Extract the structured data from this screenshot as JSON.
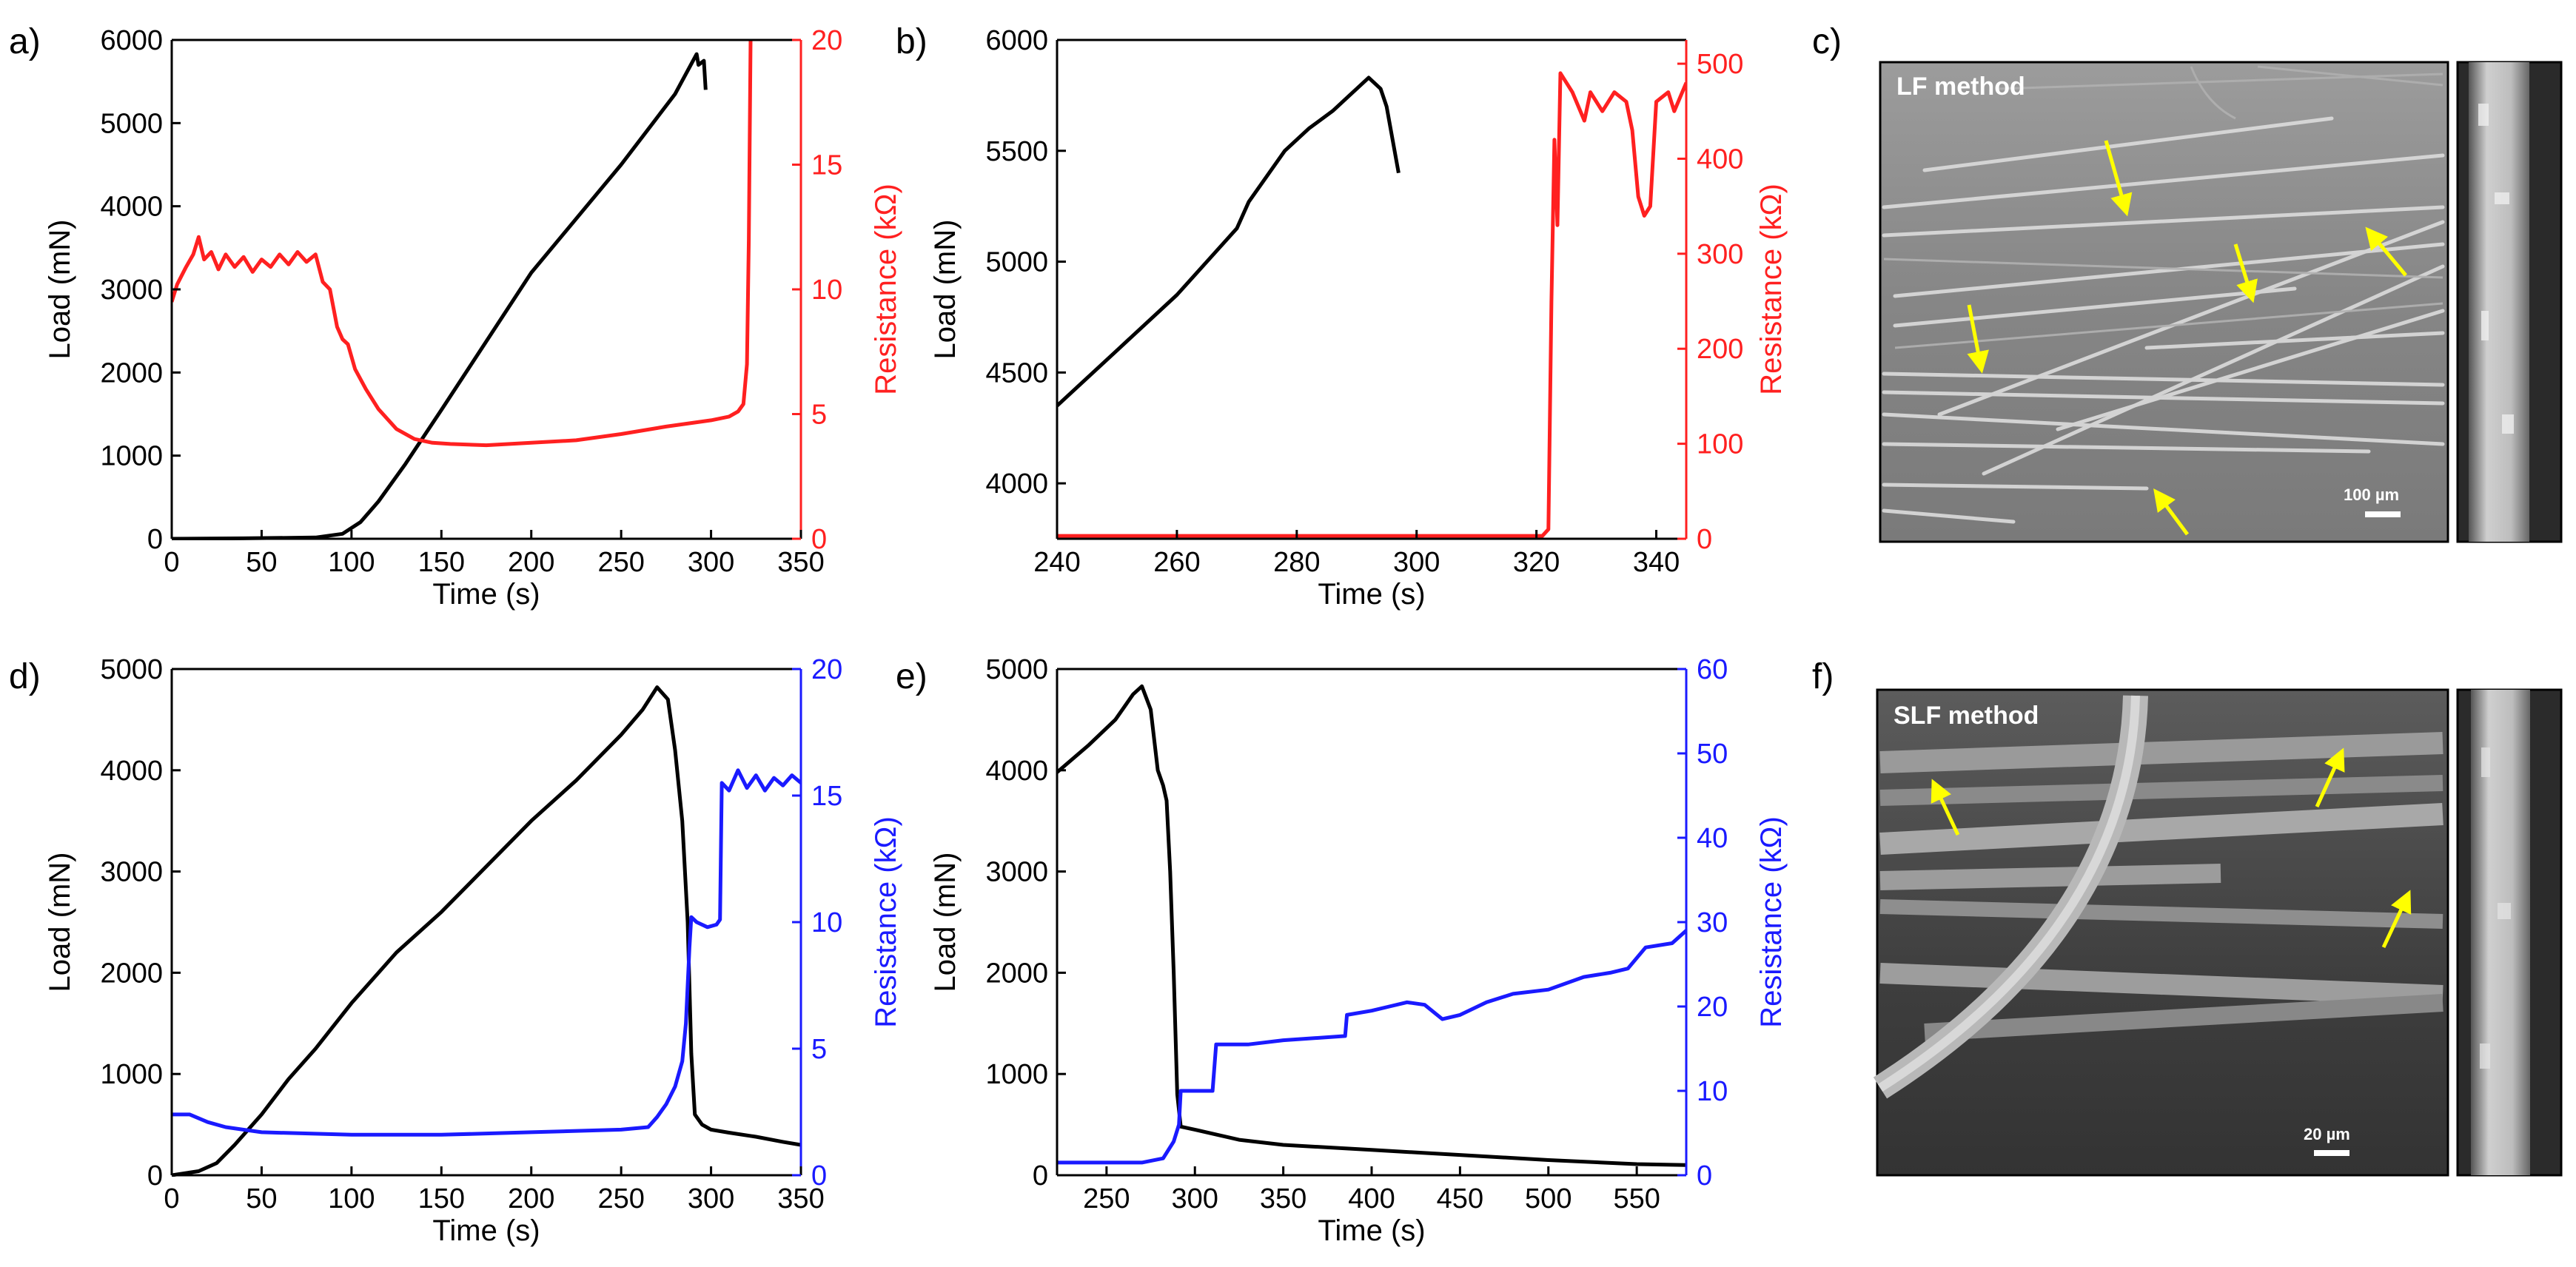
{
  "chart_data": [
    {
      "id": "a",
      "panel_label": "a)",
      "type": "line",
      "xlabel": "Time (s)",
      "ylabel_left": "Load (mN)",
      "ylabel_right": "Resistance (kΩ)",
      "xlim": [
        0,
        350
      ],
      "ylim_left": [
        0,
        6000
      ],
      "ylim_right": [
        0,
        20
      ],
      "xticks": [
        0,
        50,
        100,
        150,
        200,
        250,
        300,
        350
      ],
      "yticks_left": [
        0,
        1000,
        2000,
        3000,
        4000,
        5000,
        6000
      ],
      "yticks_right": [
        0,
        5,
        10,
        15,
        20
      ],
      "right_color": "#ff2020",
      "series": [
        {
          "name": "Load",
          "axis": "left",
          "color": "#000000",
          "points": [
            [
              0,
              0
            ],
            [
              40,
              5
            ],
            [
              80,
              15
            ],
            [
              95,
              60
            ],
            [
              105,
              200
            ],
            [
              115,
              450
            ],
            [
              130,
              900
            ],
            [
              150,
              1550
            ],
            [
              200,
              3200
            ],
            [
              250,
              4500
            ],
            [
              280,
              5350
            ],
            [
              292,
              5830
            ],
            [
              293,
              5700
            ],
            [
              296,
              5750
            ],
            [
              297,
              5400
            ]
          ]
        },
        {
          "name": "Resistance",
          "axis": "right",
          "color": "#ff2020",
          "points": [
            [
              0,
              9.5
            ],
            [
              3,
              10.2
            ],
            [
              8,
              10.9
            ],
            [
              12,
              11.4
            ],
            [
              15,
              12.1
            ],
            [
              18,
              11.2
            ],
            [
              22,
              11.5
            ],
            [
              26,
              10.8
            ],
            [
              30,
              11.4
            ],
            [
              35,
              10.9
            ],
            [
              40,
              11.3
            ],
            [
              45,
              10.7
            ],
            [
              50,
              11.2
            ],
            [
              55,
              10.9
            ],
            [
              60,
              11.4
            ],
            [
              65,
              11.0
            ],
            [
              70,
              11.5
            ],
            [
              75,
              11.1
            ],
            [
              80,
              11.4
            ],
            [
              84,
              10.3
            ],
            [
              88,
              10.0
            ],
            [
              92,
              8.5
            ],
            [
              95,
              8.0
            ],
            [
              98,
              7.8
            ],
            [
              102,
              6.8
            ],
            [
              108,
              6.0
            ],
            [
              115,
              5.2
            ],
            [
              125,
              4.4
            ],
            [
              135,
              4.0
            ],
            [
              145,
              3.85
            ],
            [
              155,
              3.8
            ],
            [
              175,
              3.75
            ],
            [
              200,
              3.85
            ],
            [
              225,
              3.95
            ],
            [
              250,
              4.2
            ],
            [
              275,
              4.5
            ],
            [
              300,
              4.75
            ],
            [
              310,
              4.9
            ],
            [
              315,
              5.1
            ],
            [
              318,
              5.4
            ],
            [
              320,
              7
            ],
            [
              321,
              12
            ],
            [
              322,
              20
            ]
          ]
        }
      ]
    },
    {
      "id": "b",
      "panel_label": "b)",
      "type": "line",
      "xlabel": "Time (s)",
      "ylabel_left": "Load (mN)",
      "ylabel_right": "Resistance (kΩ)",
      "xlim": [
        240,
        345
      ],
      "ylim_left": [
        3750,
        6000
      ],
      "ylim_right": [
        0,
        525
      ],
      "xticks": [
        240,
        260,
        280,
        300,
        320,
        340
      ],
      "yticks_left": [
        4000,
        4500,
        5000,
        5500,
        6000
      ],
      "yticks_right": [
        0,
        100,
        200,
        300,
        400,
        500
      ],
      "right_color": "#ff2020",
      "series": [
        {
          "name": "Load",
          "axis": "left",
          "color": "#000000",
          "points": [
            [
              240,
              4350
            ],
            [
              250,
              4600
            ],
            [
              260,
              4850
            ],
            [
              270,
              5150
            ],
            [
              272,
              5270
            ],
            [
              278,
              5500
            ],
            [
              282,
              5600
            ],
            [
              286,
              5680
            ],
            [
              290,
              5780
            ],
            [
              292,
              5830
            ],
            [
              294,
              5780
            ],
            [
              295,
              5700
            ],
            [
              296,
              5550
            ],
            [
              297,
              5400
            ]
          ]
        },
        {
          "name": "Resistance",
          "axis": "right",
          "color": "#ff2020",
          "points": [
            [
              240,
              3
            ],
            [
              300,
              3
            ],
            [
              321,
              3
            ],
            [
              322,
              10
            ],
            [
              322.5,
              250
            ],
            [
              323,
              420
            ],
            [
              323.5,
              330
            ],
            [
              324,
              490
            ],
            [
              326,
              470
            ],
            [
              328,
              440
            ],
            [
              329,
              470
            ],
            [
              331,
              450
            ],
            [
              333,
              470
            ],
            [
              335,
              460
            ],
            [
              336,
              430
            ],
            [
              337,
              360
            ],
            [
              338,
              340
            ],
            [
              339,
              350
            ],
            [
              340,
              460
            ],
            [
              342,
              470
            ],
            [
              343,
              450
            ],
            [
              345,
              480
            ]
          ]
        }
      ]
    },
    {
      "id": "d",
      "panel_label": "d)",
      "type": "line",
      "xlabel": "Time (s)",
      "ylabel_left": "Load (mN)",
      "ylabel_right": "Resistance (kΩ)",
      "xlim": [
        0,
        350
      ],
      "ylim_left": [
        0,
        5000
      ],
      "ylim_right": [
        0,
        20
      ],
      "xticks": [
        0,
        50,
        100,
        150,
        200,
        250,
        300,
        350
      ],
      "yticks_left": [
        0,
        1000,
        2000,
        3000,
        4000,
        5000
      ],
      "yticks_right": [
        0,
        5,
        10,
        15,
        20
      ],
      "right_color": "#1a1aff",
      "series": [
        {
          "name": "Load",
          "axis": "left",
          "color": "#000000",
          "points": [
            [
              0,
              0
            ],
            [
              15,
              40
            ],
            [
              25,
              120
            ],
            [
              35,
              300
            ],
            [
              50,
              600
            ],
            [
              65,
              950
            ],
            [
              80,
              1250
            ],
            [
              100,
              1700
            ],
            [
              125,
              2200
            ],
            [
              150,
              2600
            ],
            [
              175,
              3050
            ],
            [
              200,
              3500
            ],
            [
              225,
              3900
            ],
            [
              250,
              4350
            ],
            [
              262,
              4600
            ],
            [
              270,
              4820
            ],
            [
              276,
              4700
            ],
            [
              280,
              4200
            ],
            [
              284,
              3500
            ],
            [
              287,
              2500
            ],
            [
              289,
              1200
            ],
            [
              291,
              600
            ],
            [
              295,
              500
            ],
            [
              300,
              450
            ],
            [
              310,
              420
            ],
            [
              325,
              380
            ],
            [
              340,
              330
            ],
            [
              350,
              300
            ]
          ]
        },
        {
          "name": "Resistance",
          "axis": "right",
          "color": "#1a1aff",
          "points": [
            [
              0,
              2.4
            ],
            [
              10,
              2.4
            ],
            [
              20,
              2.1
            ],
            [
              30,
              1.9
            ],
            [
              50,
              1.7
            ],
            [
              100,
              1.6
            ],
            [
              150,
              1.6
            ],
            [
              200,
              1.7
            ],
            [
              250,
              1.8
            ],
            [
              265,
              1.9
            ],
            [
              270,
              2.3
            ],
            [
              275,
              2.8
            ],
            [
              280,
              3.5
            ],
            [
              284,
              4.5
            ],
            [
              286,
              6
            ],
            [
              288,
              9
            ],
            [
              289,
              10.2
            ],
            [
              292,
              10.0
            ],
            [
              298,
              9.8
            ],
            [
              303,
              9.9
            ],
            [
              305,
              10.1
            ],
            [
              306,
              15.5
            ],
            [
              310,
              15.2
            ],
            [
              315,
              16
            ],
            [
              320,
              15.3
            ],
            [
              325,
              15.8
            ],
            [
              330,
              15.2
            ],
            [
              335,
              15.7
            ],
            [
              340,
              15.4
            ],
            [
              345,
              15.8
            ],
            [
              350,
              15.5
            ]
          ]
        }
      ]
    },
    {
      "id": "e",
      "panel_label": "e)",
      "type": "line",
      "xlabel": "Time (s)",
      "ylabel_left": "Load (mN)",
      "ylabel_right": "Resistance (kΩ)",
      "xlim": [
        222,
        578
      ],
      "ylim_left": [
        0,
        5000
      ],
      "ylim_right": [
        0,
        60
      ],
      "xticks": [
        250,
        300,
        350,
        400,
        450,
        500,
        550
      ],
      "yticks_left": [
        0,
        1000,
        2000,
        3000,
        4000,
        5000
      ],
      "yticks_right": [
        0,
        10,
        20,
        30,
        40,
        50,
        60
      ],
      "right_color": "#1a1aff",
      "series": [
        {
          "name": "Load",
          "axis": "left",
          "color": "#000000",
          "points": [
            [
              222,
              3980
            ],
            [
              240,
              4250
            ],
            [
              255,
              4500
            ],
            [
              265,
              4750
            ],
            [
              270,
              4830
            ],
            [
              275,
              4600
            ],
            [
              279,
              4000
            ],
            [
              282,
              3850
            ],
            [
              284,
              3700
            ],
            [
              286,
              3000
            ],
            [
              288,
              2000
            ],
            [
              290,
              800
            ],
            [
              292,
              480
            ],
            [
              300,
              450
            ],
            [
              325,
              350
            ],
            [
              350,
              300
            ],
            [
              400,
              250
            ],
            [
              450,
              200
            ],
            [
              500,
              150
            ],
            [
              550,
              110
            ],
            [
              578,
              100
            ]
          ]
        },
        {
          "name": "Resistance",
          "axis": "right",
          "color": "#1a1aff",
          "points": [
            [
              222,
              1.5
            ],
            [
              270,
              1.5
            ],
            [
              282,
              2
            ],
            [
              288,
              4
            ],
            [
              291,
              6
            ],
            [
              292,
              10
            ],
            [
              300,
              10
            ],
            [
              310,
              10
            ],
            [
              312,
              15.5
            ],
            [
              330,
              15.5
            ],
            [
              350,
              16
            ],
            [
              385,
              16.5
            ],
            [
              386,
              19
            ],
            [
              400,
              19.5
            ],
            [
              410,
              20
            ],
            [
              420,
              20.5
            ],
            [
              430,
              20.2
            ],
            [
              440,
              18.5
            ],
            [
              450,
              19
            ],
            [
              465,
              20.5
            ],
            [
              480,
              21.5
            ],
            [
              500,
              22
            ],
            [
              520,
              23.5
            ],
            [
              535,
              24
            ],
            [
              545,
              24.5
            ],
            [
              555,
              27
            ],
            [
              570,
              27.5
            ],
            [
              578,
              29
            ]
          ]
        }
      ]
    }
  ],
  "sem_panels": [
    {
      "panel_label": "c)",
      "method_label": "LF method",
      "scale_label": "100 µm"
    },
    {
      "panel_label": "f)",
      "method_label": "SLF method",
      "scale_label": "20 µm"
    }
  ]
}
